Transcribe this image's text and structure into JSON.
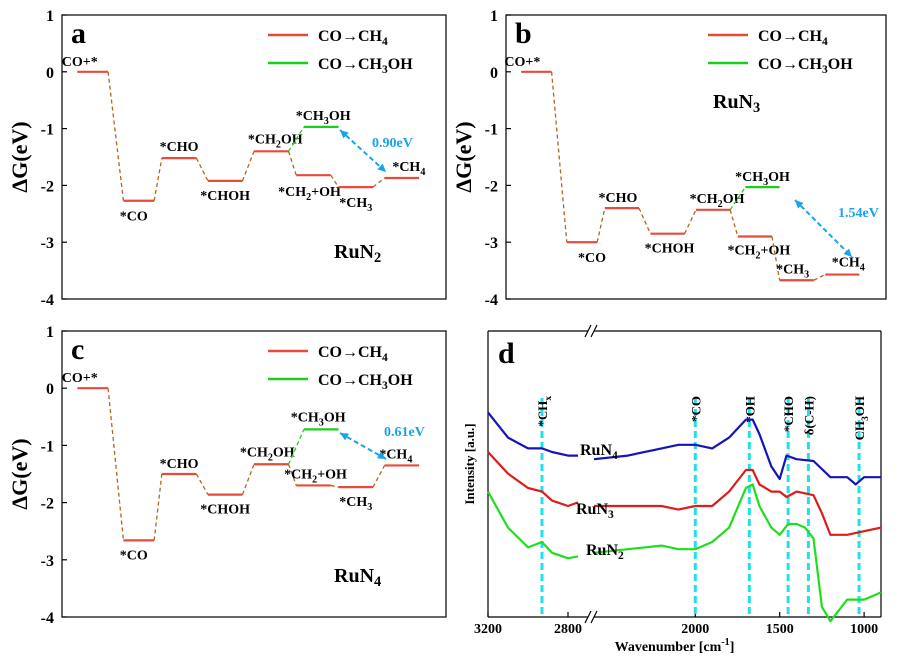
{
  "chart_data": [
    {
      "panel": "a",
      "type": "line",
      "ylabel": "ΔG(eV)",
      "ylim": [
        -4,
        1
      ],
      "yticks": [
        1,
        0,
        -1,
        -2,
        -3,
        -4
      ],
      "xticks_shown": false,
      "catalyst_label": "RuN2",
      "legend": [
        "CO→CH4",
        "CO→CH3OH"
      ],
      "colors": {
        "ch4": "#e84a3b",
        "ch3oh": "#18d018",
        "connector": "#b5651d",
        "arrow": "#1aa3e8",
        "energy_label": "#1aa3e8"
      },
      "series": [
        {
          "name": "CO→CH4",
          "states": [
            {
              "label": "CO+*",
              "dg": 0.0
            },
            {
              "label": "*CO",
              "dg": -2.27
            },
            {
              "label": "*CHO",
              "dg": -1.52
            },
            {
              "label": "*CHOH",
              "dg": -1.92
            },
            {
              "label": "*CH2OH",
              "dg": -1.4
            },
            {
              "label": "*CH2+OH",
              "dg": -1.82
            },
            {
              "label": "*CH3",
              "dg": -2.03
            },
            {
              "label": "*CH4",
              "dg": -1.87
            }
          ]
        },
        {
          "name": "CO→CH3OH",
          "branch": {
            "from_state": "*CH2OH",
            "label": "*CH3OH",
            "dg": -0.97
          }
        }
      ],
      "annotation": "0.90eV"
    },
    {
      "panel": "b",
      "type": "line",
      "ylabel": "ΔG(eV)",
      "ylim": [
        -4,
        1
      ],
      "yticks": [
        1,
        0,
        -1,
        -2,
        -3,
        -4
      ],
      "xticks_shown": false,
      "catalyst_label": "RuN3",
      "legend": [
        "CO→CH4",
        "CO→CH3OH"
      ],
      "colors": {
        "ch4": "#e84a3b",
        "ch3oh": "#18d018",
        "connector": "#b5651d",
        "arrow": "#1aa3e8",
        "energy_label": "#1aa3e8"
      },
      "series": [
        {
          "name": "CO→CH4",
          "states": [
            {
              "label": "CO+*",
              "dg": 0.0
            },
            {
              "label": "*CO",
              "dg": -3.0
            },
            {
              "label": "*CHO",
              "dg": -2.4
            },
            {
              "label": "*CHOH",
              "dg": -2.85
            },
            {
              "label": "*CH2OH",
              "dg": -2.43
            },
            {
              "label": "*CH2+OH",
              "dg": -2.9
            },
            {
              "label": "*CH3",
              "dg": -3.67
            },
            {
              "label": "*CH4",
              "dg": -3.57
            }
          ]
        },
        {
          "name": "CO→CH3OH",
          "branch": {
            "from_state": "*CH2OH",
            "label": "*CH3OH",
            "dg": -2.03
          }
        }
      ],
      "annotation": "1.54eV"
    },
    {
      "panel": "c",
      "type": "line",
      "ylabel": "ΔG(eV)",
      "ylim": [
        -4,
        1
      ],
      "yticks": [
        1,
        0,
        -1,
        -2,
        -3,
        -4
      ],
      "xticks_shown": false,
      "catalyst_label": "RuN4",
      "legend": [
        "CO→CH4",
        "CO→CH3OH"
      ],
      "colors": {
        "ch4": "#e84a3b",
        "ch3oh": "#18d018",
        "connector": "#b5651d",
        "arrow": "#1aa3e8",
        "energy_label": "#1aa3e8"
      },
      "series": [
        {
          "name": "CO→CH4",
          "states": [
            {
              "label": "CO+*",
              "dg": 0.0
            },
            {
              "label": "*CO",
              "dg": -2.66
            },
            {
              "label": "*CHO",
              "dg": -1.5
            },
            {
              "label": "*CHOH",
              "dg": -1.86
            },
            {
              "label": "*CH2OH",
              "dg": -1.33
            },
            {
              "label": "*CH2+OH",
              "dg": -1.7
            },
            {
              "label": "*CH3",
              "dg": -1.73
            },
            {
              "label": "*CH4",
              "dg": -1.35
            }
          ]
        },
        {
          "name": "CO→CH3OH",
          "branch": {
            "from_state": "*CH2OH",
            "label": "*CH3OH",
            "dg": -0.72
          }
        }
      ],
      "annotation": "0.61eV"
    },
    {
      "panel": "d",
      "type": "line",
      "xlabel": "Wavenumber [cm⁻¹]",
      "ylabel": "Intensity [a.u.]",
      "xlim": [
        3200,
        900
      ],
      "x_reversed": true,
      "axis_break_between": [
        2700,
        2600
      ],
      "xticks": [
        3200,
        2800,
        2000,
        1500,
        1000
      ],
      "yticks_shown": false,
      "colors": {
        "RuN4": "#1414b8",
        "RuN3": "#dd1c1c",
        "RuN2": "#1edf1e",
        "marker": "#22e0ea"
      },
      "markers": [
        {
          "label": "*CHx",
          "x": 2930
        },
        {
          "label": "*CO",
          "x": 2000
        },
        {
          "label": "*OH",
          "x": 1680
        },
        {
          "label": "*CHO",
          "x": 1450
        },
        {
          "label": "δ(C-H)",
          "x": 1330
        },
        {
          "label": "CH3OH",
          "x": 1030
        }
      ],
      "series": [
        {
          "name": "RuN4",
          "x": [
            3200,
            3100,
            3000,
            2930,
            2880,
            2800,
            2750,
            2600,
            2400,
            2200,
            2100,
            2000,
            1900,
            1800,
            1700,
            1660,
            1620,
            1550,
            1500,
            1460,
            1400,
            1300,
            1200,
            1100,
            1050,
            1000,
            900
          ],
          "y": [
            0.82,
            0.68,
            0.62,
            0.62,
            0.6,
            0.58,
            0.58,
            0.56,
            0.58,
            0.62,
            0.64,
            0.64,
            0.62,
            0.68,
            0.78,
            0.78,
            0.7,
            0.52,
            0.45,
            0.58,
            0.56,
            0.55,
            0.46,
            0.46,
            0.42,
            0.46,
            0.46
          ]
        },
        {
          "name": "RuN3",
          "x": [
            3200,
            3100,
            3000,
            2930,
            2880,
            2800,
            2750,
            2600,
            2400,
            2200,
            2100,
            2000,
            1900,
            1800,
            1700,
            1660,
            1620,
            1550,
            1500,
            1460,
            1400,
            1300,
            1250,
            1200,
            1100,
            1000,
            900
          ],
          "y": [
            0.6,
            0.48,
            0.4,
            0.38,
            0.33,
            0.3,
            0.32,
            0.3,
            0.3,
            0.3,
            0.28,
            0.3,
            0.3,
            0.38,
            0.5,
            0.5,
            0.42,
            0.38,
            0.38,
            0.35,
            0.38,
            0.36,
            0.26,
            0.14,
            0.14,
            0.16,
            0.18
          ]
        },
        {
          "name": "RuN2",
          "x": [
            3200,
            3100,
            3000,
            2930,
            2880,
            2800,
            2750,
            2600,
            2400,
            2200,
            2100,
            2000,
            1900,
            1800,
            1700,
            1660,
            1620,
            1550,
            1500,
            1450,
            1400,
            1350,
            1300,
            1250,
            1200,
            1100,
            1000,
            900
          ],
          "y": [
            0.38,
            0.18,
            0.07,
            0.1,
            0.04,
            0.01,
            0.02,
            0.04,
            0.06,
            0.08,
            0.06,
            0.06,
            0.1,
            0.18,
            0.4,
            0.42,
            0.3,
            0.18,
            0.14,
            0.2,
            0.2,
            0.18,
            0.12,
            -0.26,
            -0.34,
            -0.22,
            -0.22,
            -0.18
          ]
        }
      ]
    }
  ]
}
